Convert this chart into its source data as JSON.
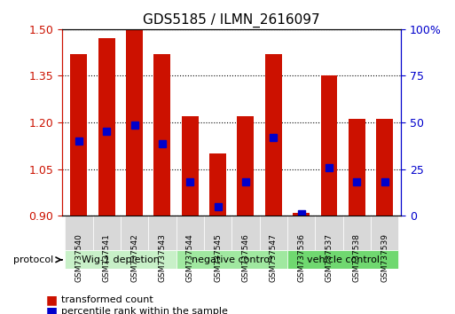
{
  "title": "GDS5185 / ILMN_2616097",
  "samples": [
    "GSM737540",
    "GSM737541",
    "GSM737542",
    "GSM737543",
    "GSM737544",
    "GSM737545",
    "GSM737546",
    "GSM737547",
    "GSM737536",
    "GSM737537",
    "GSM737538",
    "GSM737539"
  ],
  "bar_tops": [
    1.42,
    1.47,
    1.5,
    1.42,
    1.22,
    1.1,
    1.22,
    1.42,
    0.91,
    1.35,
    1.21,
    1.21
  ],
  "bar_bottoms": [
    0.9,
    0.9,
    0.9,
    0.9,
    0.9,
    0.9,
    0.9,
    0.9,
    0.9,
    0.9,
    0.9,
    0.9
  ],
  "blue_markers": [
    1.14,
    1.17,
    1.19,
    1.13,
    1.01,
    0.93,
    1.01,
    1.15,
    0.905,
    1.055,
    1.01,
    1.01
  ],
  "ylim": [
    0.9,
    1.5
  ],
  "yticks": [
    0.9,
    1.05,
    1.2,
    1.35,
    1.5
  ],
  "y2ticks": [
    0,
    25,
    50,
    75,
    100
  ],
  "y2labels": [
    "0",
    "25",
    "50",
    "75",
    "100%"
  ],
  "bar_color": "#cc1100",
  "blue_color": "#0000cc",
  "group_colors": [
    "#c8f0c8",
    "#a0e8a0",
    "#70d870"
  ],
  "groups": [
    {
      "label": "Wig-1 depletion",
      "start": 0,
      "end": 4,
      "color": "#c8f0c8"
    },
    {
      "label": "negative control",
      "start": 4,
      "end": 8,
      "color": "#a0e8a0"
    },
    {
      "label": "vehicle control",
      "start": 8,
      "end": 12,
      "color": "#70d870"
    }
  ],
  "protocol_label": "protocol",
  "legend_red": "transformed count",
  "legend_blue": "percentile rank within the sample",
  "bar_width": 0.6,
  "grid_color": "#000000",
  "tick_color_left": "#cc1100",
  "tick_color_right": "#0000cc",
  "xlabel_area_height": 0.22,
  "group_bar_height": 0.07
}
